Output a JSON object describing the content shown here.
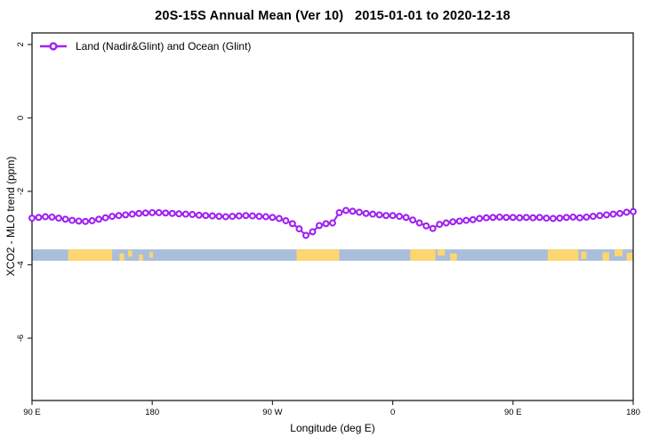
{
  "title": "20S-15S Annual Mean (Ver 10)   2015-01-01 to 2020-12-18",
  "legend": {
    "label": "Land (Nadir&Glint) and Ocean (Glint)",
    "marker": "open-circle-on-line"
  },
  "colors": {
    "series": "#A020F0",
    "ocean": "#A8BEDA",
    "land": "#FCD671",
    "axis": "#2E2E2E"
  },
  "chart_data": {
    "type": "line",
    "title": "20S-15S Annual Mean (Ver 10)   2015-01-01 to 2020-12-18",
    "xlabel": "Longitude (deg E)",
    "ylabel": "XCO2 - MLO trend (ppm)",
    "grid": false,
    "legend_position": "top-left",
    "axis_color": "#2E2E2E",
    "x_range_deg": [
      90,
      540
    ],
    "y_range": [
      2.3,
      -7.7
    ],
    "x_ticks": [
      {
        "deg": 90,
        "label": "90 E"
      },
      {
        "deg": 180,
        "label": "180"
      },
      {
        "deg": 270,
        "label": "90 W"
      },
      {
        "deg": 360,
        "label": "0"
      },
      {
        "deg": 450,
        "label": "90 E"
      },
      {
        "deg": 540,
        "label": "180"
      }
    ],
    "y_ticks": [
      {
        "value": 2,
        "label": "2"
      },
      {
        "value": 0,
        "label": "0"
      },
      {
        "value": -2,
        "label": "-2"
      },
      {
        "value": -4,
        "label": "-4"
      },
      {
        "value": -6,
        "label": "-6"
      }
    ],
    "series": [
      {
        "name": "Land (Nadir&Glint) and Ocean (Glint)",
        "color": "#A020F0",
        "marker": "open-circle",
        "x_deg": [
          90,
          95,
          100,
          105,
          110,
          115,
          120,
          125,
          130,
          135,
          140,
          145,
          150,
          155,
          160,
          165,
          170,
          175,
          180,
          185,
          190,
          195,
          200,
          205,
          210,
          215,
          220,
          225,
          230,
          235,
          240,
          245,
          250,
          255,
          260,
          265,
          270,
          275,
          280,
          285,
          290,
          295,
          300,
          305,
          310,
          315,
          320,
          325,
          330,
          335,
          340,
          345,
          350,
          355,
          360,
          365,
          370,
          375,
          380,
          385,
          390,
          395,
          400,
          405,
          410,
          415,
          420,
          425,
          430,
          435,
          440,
          445,
          450,
          455,
          460,
          465,
          470,
          475,
          480,
          485,
          490,
          495,
          500,
          505,
          510,
          515,
          520,
          525,
          530,
          535,
          540
        ],
        "values": [
          -2.73,
          -2.71,
          -2.69,
          -2.7,
          -2.73,
          -2.76,
          -2.79,
          -2.81,
          -2.82,
          -2.8,
          -2.76,
          -2.72,
          -2.68,
          -2.66,
          -2.64,
          -2.62,
          -2.6,
          -2.59,
          -2.58,
          -2.58,
          -2.59,
          -2.6,
          -2.61,
          -2.62,
          -2.63,
          -2.65,
          -2.66,
          -2.67,
          -2.68,
          -2.69,
          -2.68,
          -2.67,
          -2.66,
          -2.67,
          -2.68,
          -2.69,
          -2.71,
          -2.74,
          -2.8,
          -2.88,
          -3.02,
          -3.2,
          -3.1,
          -2.93,
          -2.88,
          -2.86,
          -2.58,
          -2.52,
          -2.54,
          -2.57,
          -2.6,
          -2.62,
          -2.64,
          -2.66,
          -2.66,
          -2.68,
          -2.71,
          -2.78,
          -2.86,
          -2.94,
          -3.01,
          -2.9,
          -2.86,
          -2.83,
          -2.81,
          -2.79,
          -2.77,
          -2.74,
          -2.72,
          -2.71,
          -2.7,
          -2.71,
          -2.71,
          -2.72,
          -2.71,
          -2.72,
          -2.71,
          -2.73,
          -2.74,
          -2.73,
          -2.71,
          -2.7,
          -2.72,
          -2.7,
          -2.68,
          -2.66,
          -2.64,
          -2.62,
          -2.6,
          -2.57,
          -2.55
        ]
      }
    ],
    "map_strip": {
      "description": "20S-15S latitude band: ocean (blue) and land (tan) vs longitude",
      "y_top_value": -3.58,
      "y_bottom_value": -3.89,
      "ocean_color": "#A8BEDA",
      "land_color": "#FCD671",
      "land_segments": [
        {
          "from": 117,
          "to": 150,
          "top": 0,
          "bottom": 1
        },
        {
          "from": 155.5,
          "to": 159,
          "top": 0.35,
          "bottom": 1
        },
        {
          "from": 162,
          "to": 165,
          "top": 0.1,
          "bottom": 0.65
        },
        {
          "from": 170,
          "to": 173,
          "top": 0.45,
          "bottom": 1
        },
        {
          "from": 178,
          "to": 180.5,
          "top": 0.2,
          "bottom": 0.75
        },
        {
          "from": 288,
          "to": 320,
          "top": 0,
          "bottom": 1
        },
        {
          "from": 373,
          "to": 392,
          "top": 0,
          "bottom": 1
        },
        {
          "from": 393.5,
          "to": 399,
          "top": 0,
          "bottom": 0.55
        },
        {
          "from": 403,
          "to": 408,
          "top": 0.35,
          "bottom": 1
        },
        {
          "from": 476,
          "to": 499,
          "top": 0,
          "bottom": 1
        },
        {
          "from": 501,
          "to": 505,
          "top": 0.2,
          "bottom": 0.85
        },
        {
          "from": 517,
          "to": 522,
          "top": 0.25,
          "bottom": 1
        },
        {
          "from": 526,
          "to": 532,
          "top": 0,
          "bottom": 0.6
        },
        {
          "from": 535,
          "to": 539.5,
          "top": 0.3,
          "bottom": 1
        }
      ]
    }
  }
}
